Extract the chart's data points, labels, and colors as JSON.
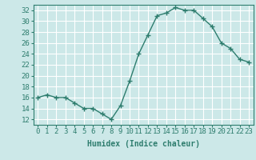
{
  "x": [
    0,
    1,
    2,
    3,
    4,
    5,
    6,
    7,
    8,
    9,
    10,
    11,
    12,
    13,
    14,
    15,
    16,
    17,
    18,
    19,
    20,
    21,
    22,
    23
  ],
  "y": [
    16,
    16.5,
    16,
    16,
    15,
    14,
    14,
    13,
    12,
    14.5,
    19,
    24,
    27.5,
    31,
    31.5,
    32.5,
    32,
    32,
    30.5,
    29,
    26,
    25,
    23,
    22.5
  ],
  "line_color": "#2e7d6e",
  "marker_color": "#2e7d6e",
  "bg_color": "#cce8e8",
  "grid_color": "#ffffff",
  "xlabel": "Humidex (Indice chaleur)",
  "ylim": [
    11,
    33
  ],
  "xlim": [
    -0.5,
    23.5
  ],
  "yticks": [
    12,
    14,
    16,
    18,
    20,
    22,
    24,
    26,
    28,
    30,
    32
  ],
  "xticks": [
    0,
    1,
    2,
    3,
    4,
    5,
    6,
    7,
    8,
    9,
    10,
    11,
    12,
    13,
    14,
    15,
    16,
    17,
    18,
    19,
    20,
    21,
    22,
    23
  ],
  "xtick_labels": [
    "0",
    "1",
    "2",
    "3",
    "4",
    "5",
    "6",
    "7",
    "8",
    "9",
    "10",
    "11",
    "12",
    "13",
    "14",
    "15",
    "16",
    "17",
    "18",
    "19",
    "20",
    "21",
    "22",
    "23"
  ],
  "xlabel_fontsize": 7,
  "tick_fontsize": 6.5,
  "line_width": 1.0,
  "marker_size": 4
}
